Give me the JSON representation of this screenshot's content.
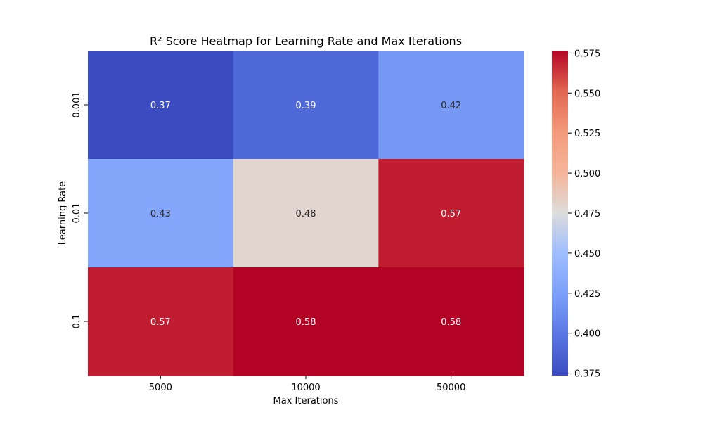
{
  "chart_data": {
    "type": "heatmap",
    "title": "R² Score Heatmap for Learning Rate and Max Iterations",
    "xlabel": "Max Iterations",
    "ylabel": "Learning Rate",
    "x_categories": [
      "5000",
      "10000",
      "50000"
    ],
    "y_categories": [
      "0.001",
      "0.01",
      "0.1"
    ],
    "values": [
      [
        0.37,
        0.39,
        0.42
      ],
      [
        0.43,
        0.48,
        0.57
      ],
      [
        0.57,
        0.58,
        0.58
      ]
    ],
    "value_labels": [
      [
        "0.37",
        "0.39",
        "0.42"
      ],
      [
        "0.43",
        "0.48",
        "0.57"
      ],
      [
        "0.57",
        "0.58",
        "0.58"
      ]
    ],
    "colormap": "coolwarm",
    "colorbar": {
      "vmin": 0.3735,
      "vmax": 0.5765,
      "ticks": [
        0.375,
        0.4,
        0.425,
        0.45,
        0.475,
        0.5,
        0.525,
        0.55,
        0.575
      ],
      "tick_labels": [
        "0.375",
        "0.400",
        "0.425",
        "0.450",
        "0.475",
        "0.500",
        "0.525",
        "0.550",
        "0.575"
      ]
    }
  }
}
